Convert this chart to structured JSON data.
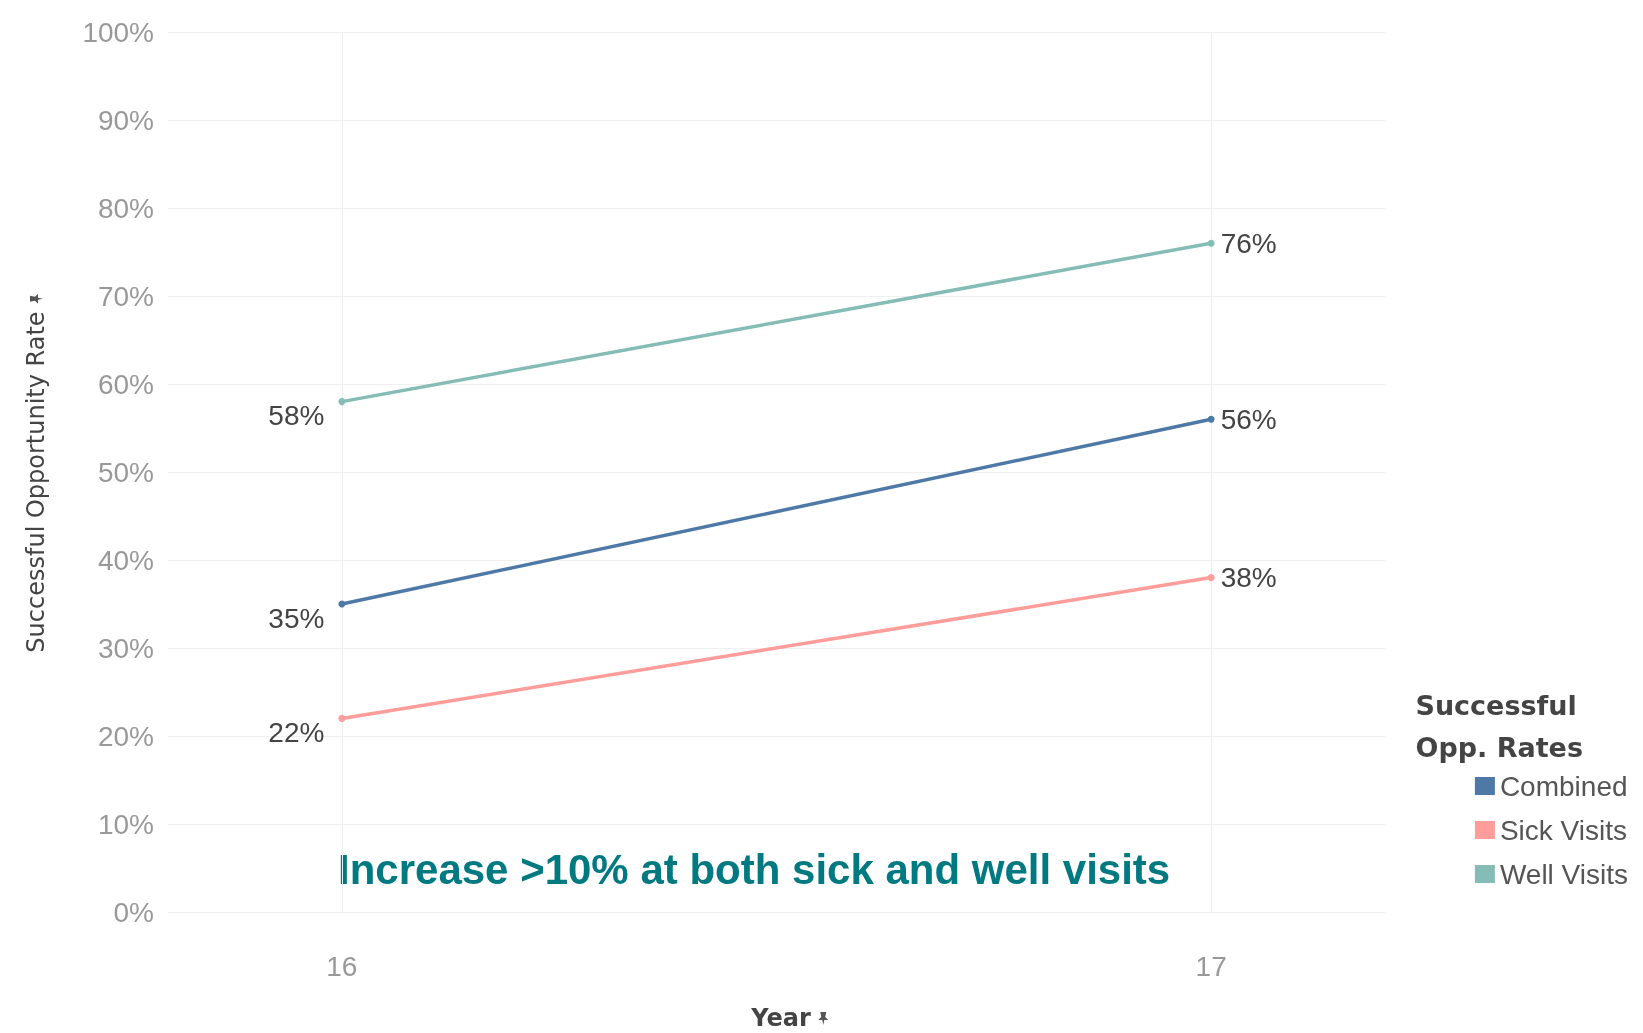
{
  "chart_data": {
    "type": "line",
    "xlabel": "Year",
    "ylabel": "Successful Opportunity Rate",
    "legend_title": "Successful Opp. Rates",
    "legend": "bottom right",
    "grid": true,
    "marker": "circle",
    "line_style": "solid",
    "x": [
      16,
      17
    ],
    "xlim": [
      15.8,
      17.2
    ],
    "xticks": [
      16,
      17
    ],
    "ylim": [
      0,
      100
    ],
    "yticks": [
      {
        "value": 0,
        "label": "0%"
      },
      {
        "value": 10,
        "label": "10%"
      },
      {
        "value": 20,
        "label": "20%"
      },
      {
        "value": 30,
        "label": "30%"
      },
      {
        "value": 40,
        "label": "40%"
      },
      {
        "value": 50,
        "label": "50%"
      },
      {
        "value": 60,
        "label": "60%"
      },
      {
        "value": 70,
        "label": "70%"
      },
      {
        "value": 80,
        "label": "80%"
      },
      {
        "value": 90,
        "label": "90%"
      },
      {
        "value": 100,
        "label": "100%"
      }
    ],
    "series": [
      {
        "name": "Combined",
        "color": "#4e79a7",
        "values": [
          35,
          56
        ],
        "value_labels": [
          "35%",
          "56%"
        ]
      },
      {
        "name": "Sick Visits",
        "color": "#ff9d9a",
        "values": [
          22,
          38
        ],
        "value_labels": [
          "22%",
          "38%"
        ]
      },
      {
        "name": "Well Visits",
        "color": "#86bcb6",
        "values": [
          58,
          76
        ],
        "value_labels": [
          "58%",
          "76%"
        ]
      }
    ],
    "annotations": [
      "Increase >10% at both sick and well visits"
    ]
  }
}
